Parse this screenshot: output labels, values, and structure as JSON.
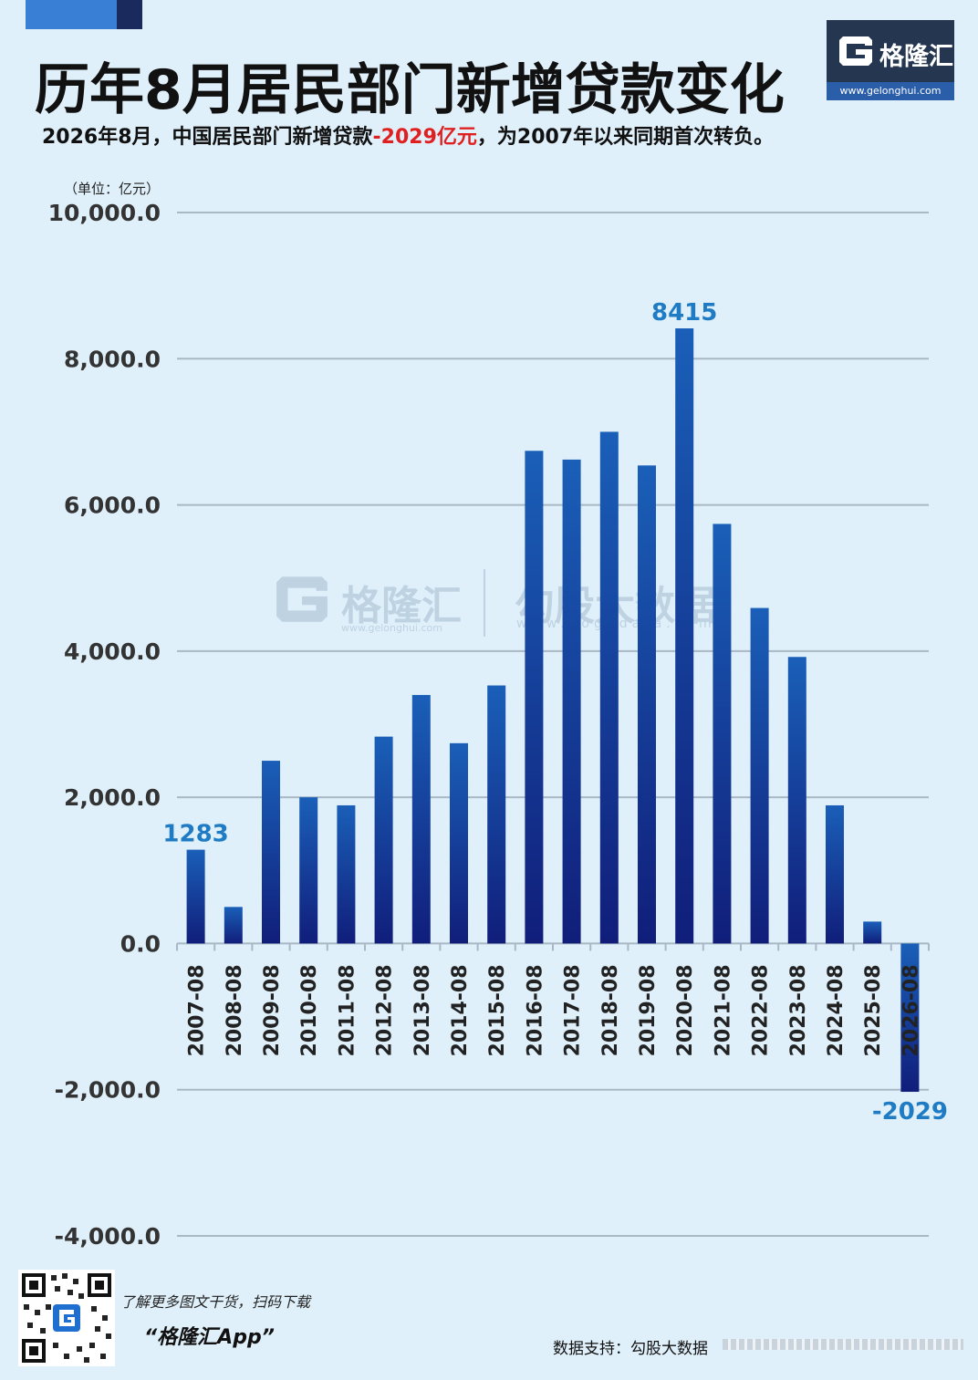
{
  "header": {
    "title": "历年8月居民部门新增贷款变化",
    "subtitle_pre": "2026年8月，中国居民部门新增贷款",
    "subtitle_highlight": "-2029亿元",
    "subtitle_post": "，为2007年以来同期首次转负。",
    "unit": "（单位：亿元）"
  },
  "logo": {
    "name": "格隆汇",
    "url": "www.gelonghui.com"
  },
  "watermark": {
    "brand": "格隆汇",
    "brand_url": "www.gelonghui.com",
    "partner": "勾股大数据",
    "partner_url": "www.gogudata.com"
  },
  "footer": {
    "promo_line1": "了解更多图文干货，扫码下载",
    "promo_line2": "“格隆汇App”",
    "source": "数据支持：勾股大数据"
  },
  "colors": {
    "bar_top": "#1a5fb8",
    "bar_bottom": "#101e7a",
    "label": "#1f7cc4",
    "highlight": "#e02020",
    "grid": "#a9b8c4"
  },
  "chart_data": {
    "type": "bar",
    "title": "历年8月居民部门新增贷款变化",
    "ylabel": "（单位：亿元）",
    "ylim": [
      -4000,
      10000
    ],
    "yticks": [
      10000,
      8000,
      6000,
      4000,
      2000,
      0,
      -2000,
      -4000
    ],
    "ytick_labels": [
      "10,000.0",
      "8,000.0",
      "6,000.0",
      "4,000.0",
      "2,000.0",
      "0.0",
      "-2,000.0",
      "-4,000.0"
    ],
    "grid": true,
    "categories": [
      "2007-08",
      "2008-08",
      "2009-08",
      "2010-08",
      "2011-08",
      "2012-08",
      "2013-08",
      "2014-08",
      "2015-08",
      "2016-08",
      "2017-08",
      "2018-08",
      "2019-08",
      "2020-08",
      "2021-08",
      "2022-08",
      "2023-08",
      "2024-08",
      "2025-08",
      "2026-08"
    ],
    "values": [
      1283,
      500,
      2500,
      2000,
      1890,
      2830,
      3400,
      2740,
      3530,
      6740,
      6620,
      7000,
      6540,
      8415,
      5740,
      4590,
      3920,
      1890,
      300,
      -2029
    ],
    "data_labels": [
      {
        "index": 0,
        "text": "1283"
      },
      {
        "index": 13,
        "text": "8415"
      },
      {
        "index": 19,
        "text": "-2029"
      }
    ]
  }
}
